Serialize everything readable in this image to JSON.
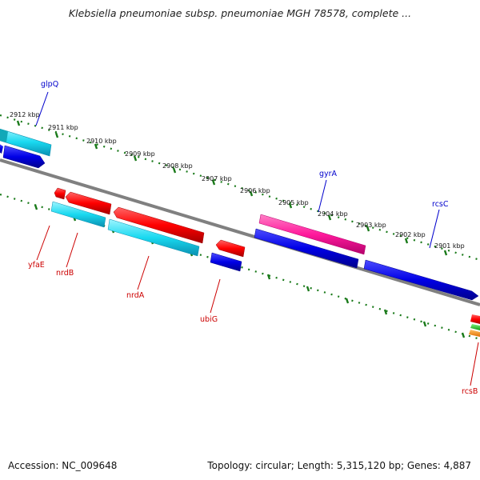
{
  "title": "Klebsiella pneumoniae subsp. pneumoniae MGH 78578, complete ...",
  "footer": {
    "accession": "Accession: NC_009648",
    "summary": "Topology: circular; Length: 5,315,120 bp; Genes: 4,887"
  },
  "scale": {
    "ticks": [
      {
        "label": "2912 kbp"
      },
      {
        "label": "2911 kbp"
      },
      {
        "label": "2910 kbp"
      },
      {
        "label": "2909 kbp"
      },
      {
        "label": "2908 kbp"
      },
      {
        "label": "2907 kbp"
      },
      {
        "label": "2906 kbp"
      },
      {
        "label": "2905 kbp"
      },
      {
        "label": "2904 kbp"
      },
      {
        "label": "2903 kbp"
      },
      {
        "label": "2902 kbp"
      },
      {
        "label": "2901 kbp"
      }
    ]
  },
  "genes": [
    {
      "label": "glpQ",
      "color": "#0000cc"
    },
    {
      "label": "gyrA",
      "color": "#0000cc"
    },
    {
      "label": "rcsC",
      "color": "#0000cc"
    },
    {
      "label": "yfaE",
      "color": "#cc0000"
    },
    {
      "label": "nrdB",
      "color": "#cc0000"
    },
    {
      "label": "nrdA",
      "color": "#cc0000"
    },
    {
      "label": "ubiG",
      "color": "#cc0000"
    },
    {
      "label": "rcsB",
      "color": "#cc0000"
    }
  ],
  "colors": {
    "backbone": "#808080",
    "tick_track": "#1a7a1a",
    "forward_blue": "#0000e6",
    "cyan": "#19d9f0",
    "red": "#ff0000",
    "magenta": "#ff1a9c",
    "orange": "#ff8c00",
    "green": "#22cc22"
  }
}
